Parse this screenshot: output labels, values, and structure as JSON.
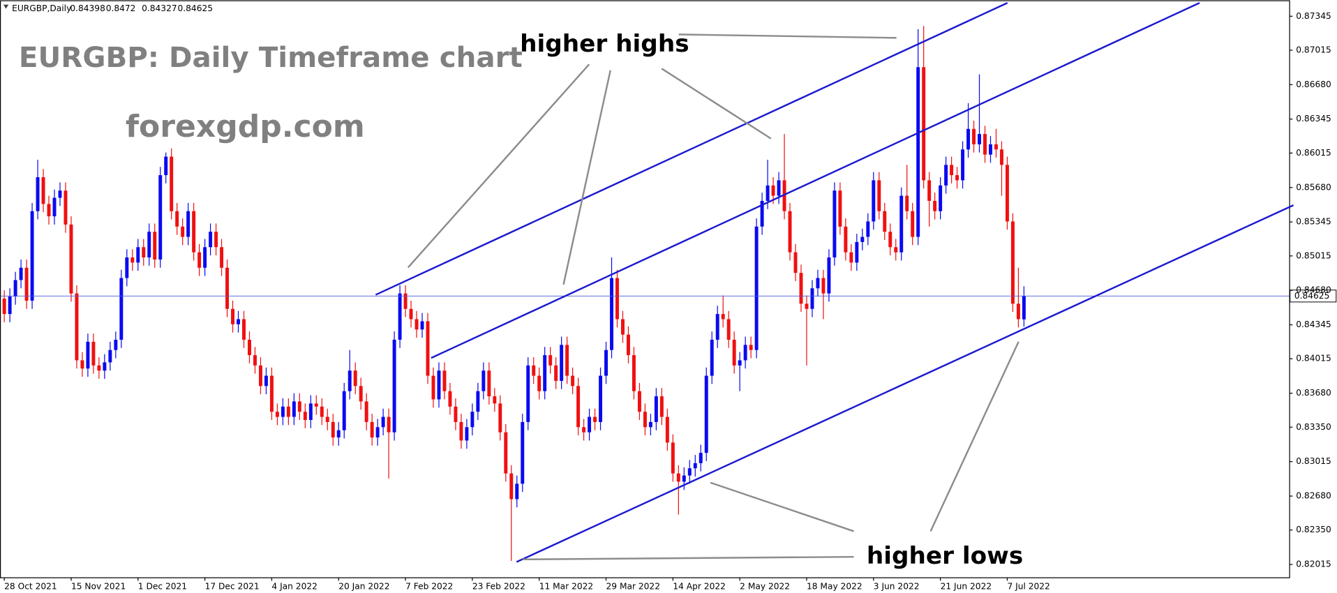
{
  "chart_data": {
    "type": "candlestick",
    "header": "EURGBP,Daily",
    "title": "EURGBP: Daily Timeframe chart",
    "subtitle": "forexgdp.com",
    "annotations": [
      "higher highs",
      "higher lows"
    ],
    "up_color": "#0a0af0",
    "down_color": "#f01010",
    "price_line_color": "#4a5ad8",
    "grid": false,
    "xlim": [
      -0.77,
      230.6
    ],
    "xticks": [
      {
        "value": 0,
        "label": "28 Oct 2021"
      },
      {
        "value": 12,
        "label": "15 Nov 2021"
      },
      {
        "value": 24,
        "label": "1 Dec 2021"
      },
      {
        "value": 36,
        "label": "17 Dec 2021"
      },
      {
        "value": 48,
        "label": "4 Jan 2022"
      },
      {
        "value": 60,
        "label": "20 Jan 2022"
      },
      {
        "value": 72,
        "label": "7 Feb 2022"
      },
      {
        "value": 84,
        "label": "23 Feb 2022"
      },
      {
        "value": 96,
        "label": "11 Mar 2022"
      },
      {
        "value": 108,
        "label": "29 Mar 2022"
      },
      {
        "value": 120,
        "label": "14 Apr 2022"
      },
      {
        "value": 132,
        "label": "2 May 2022"
      },
      {
        "value": 144,
        "label": "18 May 2022"
      },
      {
        "value": 156,
        "label": "3 Jun 2022"
      },
      {
        "value": 168,
        "label": "21 Jun 2022"
      },
      {
        "value": 180,
        "label": "7 Jul 2022"
      }
    ],
    "ylim": [
      0.8189,
      0.875
    ],
    "yticks": [
      0.87345,
      0.87015,
      {
        "value": 0.8668,
        "label": "0.86680"
      },
      0.86345,
      0.86015,
      {
        "value": 0.8568,
        "label": "0.85680"
      },
      0.85345,
      0.85015,
      {
        "value": 0.8468,
        "label": "0.84680"
      },
      0.84345,
      0.84015,
      {
        "value": 0.8368,
        "label": "0.83680"
      },
      {
        "value": 0.8335,
        "label": "0.83350"
      },
      0.83015,
      {
        "value": 0.8268,
        "label": "0.82680"
      },
      {
        "value": 0.8235,
        "label": "0.82350"
      },
      0.82015
    ],
    "open": [
      0.846,
      0.8445,
      0.8462,
      0.8478,
      0.849,
      0.8458,
      0.8545,
      0.8578,
      0.8552,
      0.854,
      0.8558,
      0.8565,
      0.8532,
      0.8465,
      0.84,
      0.8392,
      0.8418,
      0.8395,
      0.839,
      0.8398,
      0.841,
      0.842,
      0.848,
      0.85,
      0.8495,
      0.851,
      0.85,
      0.8525,
      0.8498,
      0.858,
      0.8598,
      0.8545,
      0.853,
      0.852,
      0.8545,
      0.8505,
      0.849,
      0.851,
      0.8525,
      0.851,
      0.849,
      0.845,
      0.8435,
      0.844,
      0.842,
      0.8405,
      0.8395,
      0.8375,
      0.8385,
      0.835,
      0.8345,
      0.8355,
      0.8345,
      0.836,
      0.835,
      0.8342,
      0.8358,
      0.8355,
      0.8345,
      0.834,
      0.8325,
      0.8332,
      0.837,
      0.839,
      0.8375,
      0.836,
      0.834,
      0.8325,
      0.8335,
      0.8345,
      0.833,
      0.842,
      0.8465,
      0.845,
      0.844,
      0.843,
      0.8438,
      0.8385,
      0.8362,
      0.839,
      0.837,
      0.8355,
      0.834,
      0.8322,
      0.8335,
      0.835,
      0.837,
      0.839,
      0.8365,
      0.8358,
      0.833,
      0.829,
      0.8265,
      0.828,
      0.834,
      0.8395,
      0.8385,
      0.837,
      0.8405,
      0.8395,
      0.838,
      0.8415,
      0.8385,
      0.8375,
      0.8335,
      0.833,
      0.8345,
      0.834,
      0.8385,
      0.841,
      0.848,
      0.844,
      0.8425,
      0.8405,
      0.837,
      0.835,
      0.8335,
      0.834,
      0.8365,
      0.8345,
      0.832,
      0.829,
      0.8282,
      0.8288,
      0.8295,
      0.83,
      0.831,
      0.8385,
      0.842,
      0.8445,
      0.844,
      0.842,
      0.8395,
      0.84,
      0.8415,
      0.841,
      0.853,
      0.8555,
      0.857,
      0.856,
      0.8575,
      0.8545,
      0.8505,
      0.8485,
      0.8455,
      0.845,
      0.847,
      0.848,
      0.8465,
      0.85,
      0.8565,
      0.853,
      0.8505,
      0.8495,
      0.8515,
      0.852,
      0.8535,
      0.8575,
      0.8545,
      0.8525,
      0.851,
      0.8505,
      0.856,
      0.8545,
      0.852,
      0.8685,
      0.8575,
      0.8555,
      0.8545,
      0.857,
      0.859,
      0.858,
      0.8575,
      0.8605,
      0.8625,
      0.861,
      0.862,
      0.86,
      0.861,
      0.8605,
      0.859,
      0.8535,
      0.8455,
      0.84398
    ],
    "high": [
      0.8468,
      0.847,
      0.8486,
      0.8498,
      0.8498,
      0.8553,
      0.8595,
      0.8586,
      0.856,
      0.8566,
      0.8573,
      0.8573,
      0.854,
      0.8473,
      0.8408,
      0.8426,
      0.8426,
      0.8403,
      0.8406,
      0.8418,
      0.8428,
      0.8488,
      0.8508,
      0.8508,
      0.8518,
      0.8518,
      0.8533,
      0.8533,
      0.8588,
      0.8602,
      0.8606,
      0.8553,
      0.8538,
      0.8553,
      0.8553,
      0.8513,
      0.8518,
      0.8533,
      0.8533,
      0.8518,
      0.8498,
      0.8458,
      0.8448,
      0.8448,
      0.8428,
      0.8413,
      0.8403,
      0.8393,
      0.8393,
      0.8358,
      0.8363,
      0.8363,
      0.8368,
      0.8368,
      0.8358,
      0.8366,
      0.8366,
      0.8363,
      0.8353,
      0.8348,
      0.834,
      0.8378,
      0.841,
      0.8398,
      0.8383,
      0.8368,
      0.8348,
      0.8343,
      0.8353,
      0.8353,
      0.8428,
      0.8473,
      0.8473,
      0.8458,
      0.8448,
      0.8446,
      0.8446,
      0.8393,
      0.8398,
      0.8398,
      0.8378,
      0.8363,
      0.8348,
      0.8343,
      0.8358,
      0.8378,
      0.8398,
      0.8398,
      0.8373,
      0.8366,
      0.8338,
      0.8298,
      0.8288,
      0.8348,
      0.8403,
      0.8403,
      0.8393,
      0.8413,
      0.8413,
      0.8403,
      0.8423,
      0.8423,
      0.8393,
      0.8383,
      0.8343,
      0.8353,
      0.8353,
      0.8393,
      0.8418,
      0.85,
      0.8488,
      0.8448,
      0.8433,
      0.8413,
      0.8378,
      0.8358,
      0.8348,
      0.8373,
      0.8373,
      0.8353,
      0.8328,
      0.8298,
      0.8296,
      0.8303,
      0.8308,
      0.8318,
      0.8393,
      0.8428,
      0.8453,
      0.8463,
      0.8448,
      0.8428,
      0.8408,
      0.8423,
      0.8423,
      0.8538,
      0.8563,
      0.8595,
      0.8578,
      0.8583,
      0.862,
      0.8553,
      0.8513,
      0.8493,
      0.8463,
      0.8478,
      0.8488,
      0.8488,
      0.8508,
      0.8573,
      0.8573,
      0.8538,
      0.8513,
      0.8523,
      0.8528,
      0.8543,
      0.8583,
      0.8583,
      0.8553,
      0.8533,
      0.8518,
      0.8568,
      0.859,
      0.8553,
      0.8722,
      0.8725,
      0.8583,
      0.8563,
      0.8578,
      0.8598,
      0.8598,
      0.8588,
      0.8613,
      0.865,
      0.8633,
      0.8678,
      0.8628,
      0.8618,
      0.8625,
      0.8613,
      0.8598,
      0.8543,
      0.849,
      0.8472
    ],
    "low": [
      0.8437,
      0.8437,
      0.8454,
      0.847,
      0.845,
      0.845,
      0.8537,
      0.8544,
      0.8532,
      0.8532,
      0.855,
      0.8524,
      0.8457,
      0.8392,
      0.8384,
      0.8384,
      0.8387,
      0.8382,
      0.8382,
      0.839,
      0.8402,
      0.8412,
      0.8472,
      0.8487,
      0.8487,
      0.8492,
      0.8492,
      0.849,
      0.849,
      0.8572,
      0.8537,
      0.8522,
      0.8512,
      0.8512,
      0.8497,
      0.8482,
      0.8482,
      0.8502,
      0.8502,
      0.8482,
      0.8442,
      0.8427,
      0.8427,
      0.8412,
      0.8397,
      0.8387,
      0.8367,
      0.8367,
      0.8342,
      0.8337,
      0.8337,
      0.8337,
      0.8337,
      0.8342,
      0.8334,
      0.8334,
      0.8347,
      0.8337,
      0.8332,
      0.8317,
      0.8317,
      0.8324,
      0.8362,
      0.8367,
      0.8352,
      0.8332,
      0.8317,
      0.8317,
      0.8327,
      0.8285,
      0.8322,
      0.8412,
      0.8442,
      0.8432,
      0.8422,
      0.8422,
      0.8377,
      0.8354,
      0.8354,
      0.8362,
      0.8347,
      0.8332,
      0.8314,
      0.8314,
      0.8327,
      0.8342,
      0.8362,
      0.8357,
      0.835,
      0.8322,
      0.8282,
      0.8205,
      0.8257,
      0.8272,
      0.8332,
      0.8377,
      0.8362,
      0.8362,
      0.8387,
      0.8372,
      0.8372,
      0.8377,
      0.8367,
      0.8327,
      0.8322,
      0.8322,
      0.8332,
      0.8332,
      0.8377,
      0.8402,
      0.8432,
      0.8417,
      0.8397,
      0.8362,
      0.8342,
      0.8327,
      0.8327,
      0.8332,
      0.8337,
      0.8312,
      0.8282,
      0.825,
      0.8274,
      0.828,
      0.8287,
      0.8292,
      0.8302,
      0.8377,
      0.8412,
      0.8432,
      0.8412,
      0.8387,
      0.837,
      0.8392,
      0.8402,
      0.8402,
      0.8522,
      0.8547,
      0.8552,
      0.8552,
      0.8537,
      0.8497,
      0.8477,
      0.8447,
      0.8395,
      0.8442,
      0.8462,
      0.844,
      0.8457,
      0.8492,
      0.8522,
      0.8497,
      0.8487,
      0.8487,
      0.8507,
      0.8512,
      0.8527,
      0.8537,
      0.8517,
      0.8502,
      0.8497,
      0.8497,
      0.8537,
      0.8512,
      0.8512,
      0.8567,
      0.853,
      0.8537,
      0.8537,
      0.8562,
      0.8572,
      0.8567,
      0.8567,
      0.8597,
      0.8602,
      0.8602,
      0.8592,
      0.8592,
      0.8597,
      0.856,
      0.8527,
      0.8447,
      0.8432,
      0.84327
    ],
    "close": [
      0.8445,
      0.8462,
      0.8478,
      0.849,
      0.8458,
      0.8545,
      0.8578,
      0.8552,
      0.854,
      0.8558,
      0.8565,
      0.8532,
      0.8465,
      0.84,
      0.8392,
      0.8418,
      0.8395,
      0.839,
      0.8398,
      0.841,
      0.842,
      0.848,
      0.85,
      0.8495,
      0.851,
      0.85,
      0.8525,
      0.8498,
      0.858,
      0.8598,
      0.8545,
      0.853,
      0.852,
      0.8545,
      0.8505,
      0.849,
      0.851,
      0.8525,
      0.851,
      0.849,
      0.845,
      0.8435,
      0.844,
      0.842,
      0.8405,
      0.8395,
      0.8375,
      0.8385,
      0.835,
      0.8345,
      0.8355,
      0.8345,
      0.836,
      0.835,
      0.8342,
      0.8358,
      0.8355,
      0.8345,
      0.834,
      0.8325,
      0.8332,
      0.837,
      0.839,
      0.8375,
      0.836,
      0.834,
      0.8325,
      0.8335,
      0.8345,
      0.833,
      0.842,
      0.8465,
      0.845,
      0.844,
      0.843,
      0.8438,
      0.8385,
      0.8362,
      0.839,
      0.837,
      0.8355,
      0.834,
      0.8322,
      0.8335,
      0.835,
      0.837,
      0.839,
      0.8365,
      0.8358,
      0.833,
      0.829,
      0.8265,
      0.828,
      0.834,
      0.8395,
      0.8385,
      0.837,
      0.8405,
      0.8395,
      0.838,
      0.8415,
      0.8385,
      0.8375,
      0.8335,
      0.833,
      0.8345,
      0.834,
      0.8385,
      0.841,
      0.848,
      0.844,
      0.8425,
      0.8405,
      0.837,
      0.835,
      0.8335,
      0.834,
      0.8365,
      0.8345,
      0.832,
      0.829,
      0.8282,
      0.8288,
      0.8295,
      0.83,
      0.831,
      0.8385,
      0.842,
      0.8445,
      0.844,
      0.842,
      0.8395,
      0.84,
      0.8415,
      0.841,
      0.853,
      0.8555,
      0.857,
      0.856,
      0.8575,
      0.8545,
      0.8505,
      0.8485,
      0.8455,
      0.845,
      0.847,
      0.848,
      0.8465,
      0.85,
      0.8565,
      0.853,
      0.8505,
      0.8495,
      0.8515,
      0.852,
      0.8535,
      0.8575,
      0.8545,
      0.8525,
      0.851,
      0.8505,
      0.856,
      0.8545,
      0.852,
      0.8685,
      0.8575,
      0.8555,
      0.8545,
      0.857,
      0.859,
      0.858,
      0.8575,
      0.8605,
      0.8625,
      0.861,
      0.862,
      0.86,
      0.861,
      0.8605,
      0.859,
      0.8535,
      0.8455,
      0.844,
      0.84625
    ]
  }
}
